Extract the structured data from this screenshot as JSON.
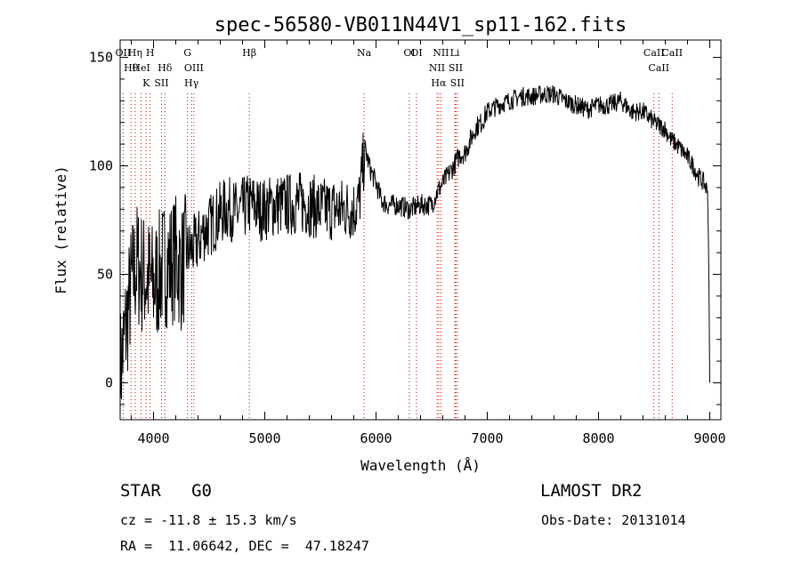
{
  "chart_data": {
    "type": "line",
    "title": "spec-56580-VB011N44V1_sp11-162.fits",
    "xlabel": "Wavelength (Å)",
    "ylabel": "Flux (relative)",
    "xlim": [
      3700,
      9100
    ],
    "ylim": [
      -17,
      158
    ],
    "xticks": [
      4000,
      5000,
      6000,
      7000,
      8000,
      9000
    ],
    "yticks": [
      0,
      50,
      100,
      150
    ],
    "grid": false,
    "line_color": "#000000",
    "marker_color": "#cc0000",
    "series": [
      {
        "x": [
          3700,
          3750,
          3800,
          3850,
          3900,
          3950,
          4000,
          4050,
          4100,
          4150,
          4200,
          4250,
          4300,
          4350,
          4400,
          4450,
          4500,
          4550,
          4600,
          4650,
          4700,
          4750,
          4800,
          4850,
          4900,
          4950,
          5000,
          5100,
          5200,
          5300,
          5400,
          5500,
          5600,
          5700,
          5800,
          5850,
          5900,
          5950,
          6000,
          6050,
          6100,
          6200,
          6300,
          6400,
          6500,
          6550,
          6600,
          6650,
          6700,
          6750,
          6800,
          6850,
          6900,
          6950,
          7000,
          7100,
          7200,
          7300,
          7400,
          7500,
          7600,
          7700,
          7800,
          7900,
          8000,
          8100,
          8200,
          8300,
          8400,
          8500,
          8600,
          8650,
          8700,
          8800,
          8850,
          8900,
          8950,
          8980,
          8990,
          9000
        ],
        "y": [
          5,
          25,
          45,
          55,
          50,
          48,
          45,
          50,
          55,
          55,
          58,
          52,
          60,
          62,
          65,
          70,
          72,
          75,
          78,
          80,
          80,
          78,
          80,
          82,
          82,
          80,
          80,
          82,
          82,
          83,
          82,
          80,
          80,
          80,
          80,
          84,
          108,
          98,
          92,
          84,
          82,
          82,
          80,
          82,
          82,
          88,
          92,
          96,
          100,
          105,
          106,
          112,
          118,
          120,
          125,
          128,
          130,
          132,
          132,
          133,
          133,
          130,
          128,
          126,
          128,
          128,
          130,
          125,
          125,
          120,
          117,
          112,
          110,
          104,
          100,
          95,
          92,
          88,
          60,
          0
        ]
      }
    ],
    "spectral_lines": [
      {
        "name": "Hη",
        "wavelength": 3835
      },
      {
        "name": "H",
        "wavelength": 3969
      },
      {
        "name": "Hθ",
        "wavelength": 3798
      },
      {
        "name": "K",
        "wavelength": 3934
      },
      {
        "name": "Hδ",
        "wavelength": 4102
      },
      {
        "name": "OII",
        "wavelength": 3727
      },
      {
        "name": "HeI",
        "wavelength": 3889
      },
      {
        "name": "SII",
        "wavelength": 4072
      },
      {
        "name": "G",
        "wavelength": 4305
      },
      {
        "name": "OIII",
        "wavelength": 4363
      },
      {
        "name": "Hγ",
        "wavelength": 4341
      },
      {
        "name": "Hβ",
        "wavelength": 4861
      },
      {
        "name": "Na",
        "wavelength": 5893
      },
      {
        "name": "OI",
        "wavelength": 6300
      },
      {
        "name": "OI",
        "wavelength": 6364
      },
      {
        "name": "NII",
        "wavelength": 6548
      },
      {
        "name": "NII",
        "wavelength": 6583
      },
      {
        "name": "Hα",
        "wavelength": 6563
      },
      {
        "name": "SII",
        "wavelength": 6716
      },
      {
        "name": "SII",
        "wavelength": 6731
      },
      {
        "name": "Li",
        "wavelength": 6708
      },
      {
        "name": "CaII",
        "wavelength": 8662
      },
      {
        "name": "CaII",
        "wavelength": 8542
      },
      {
        "name": "CaII",
        "wavelength": 8498
      }
    ]
  },
  "info": {
    "star_class": "STAR   G0",
    "survey": "LAMOST DR2",
    "redshift": "cz = -11.8 ± 15.3 km/s",
    "obs_date": "Obs-Date: 20131014",
    "coords": "RA =  11.06642, DEC =  47.18247"
  }
}
